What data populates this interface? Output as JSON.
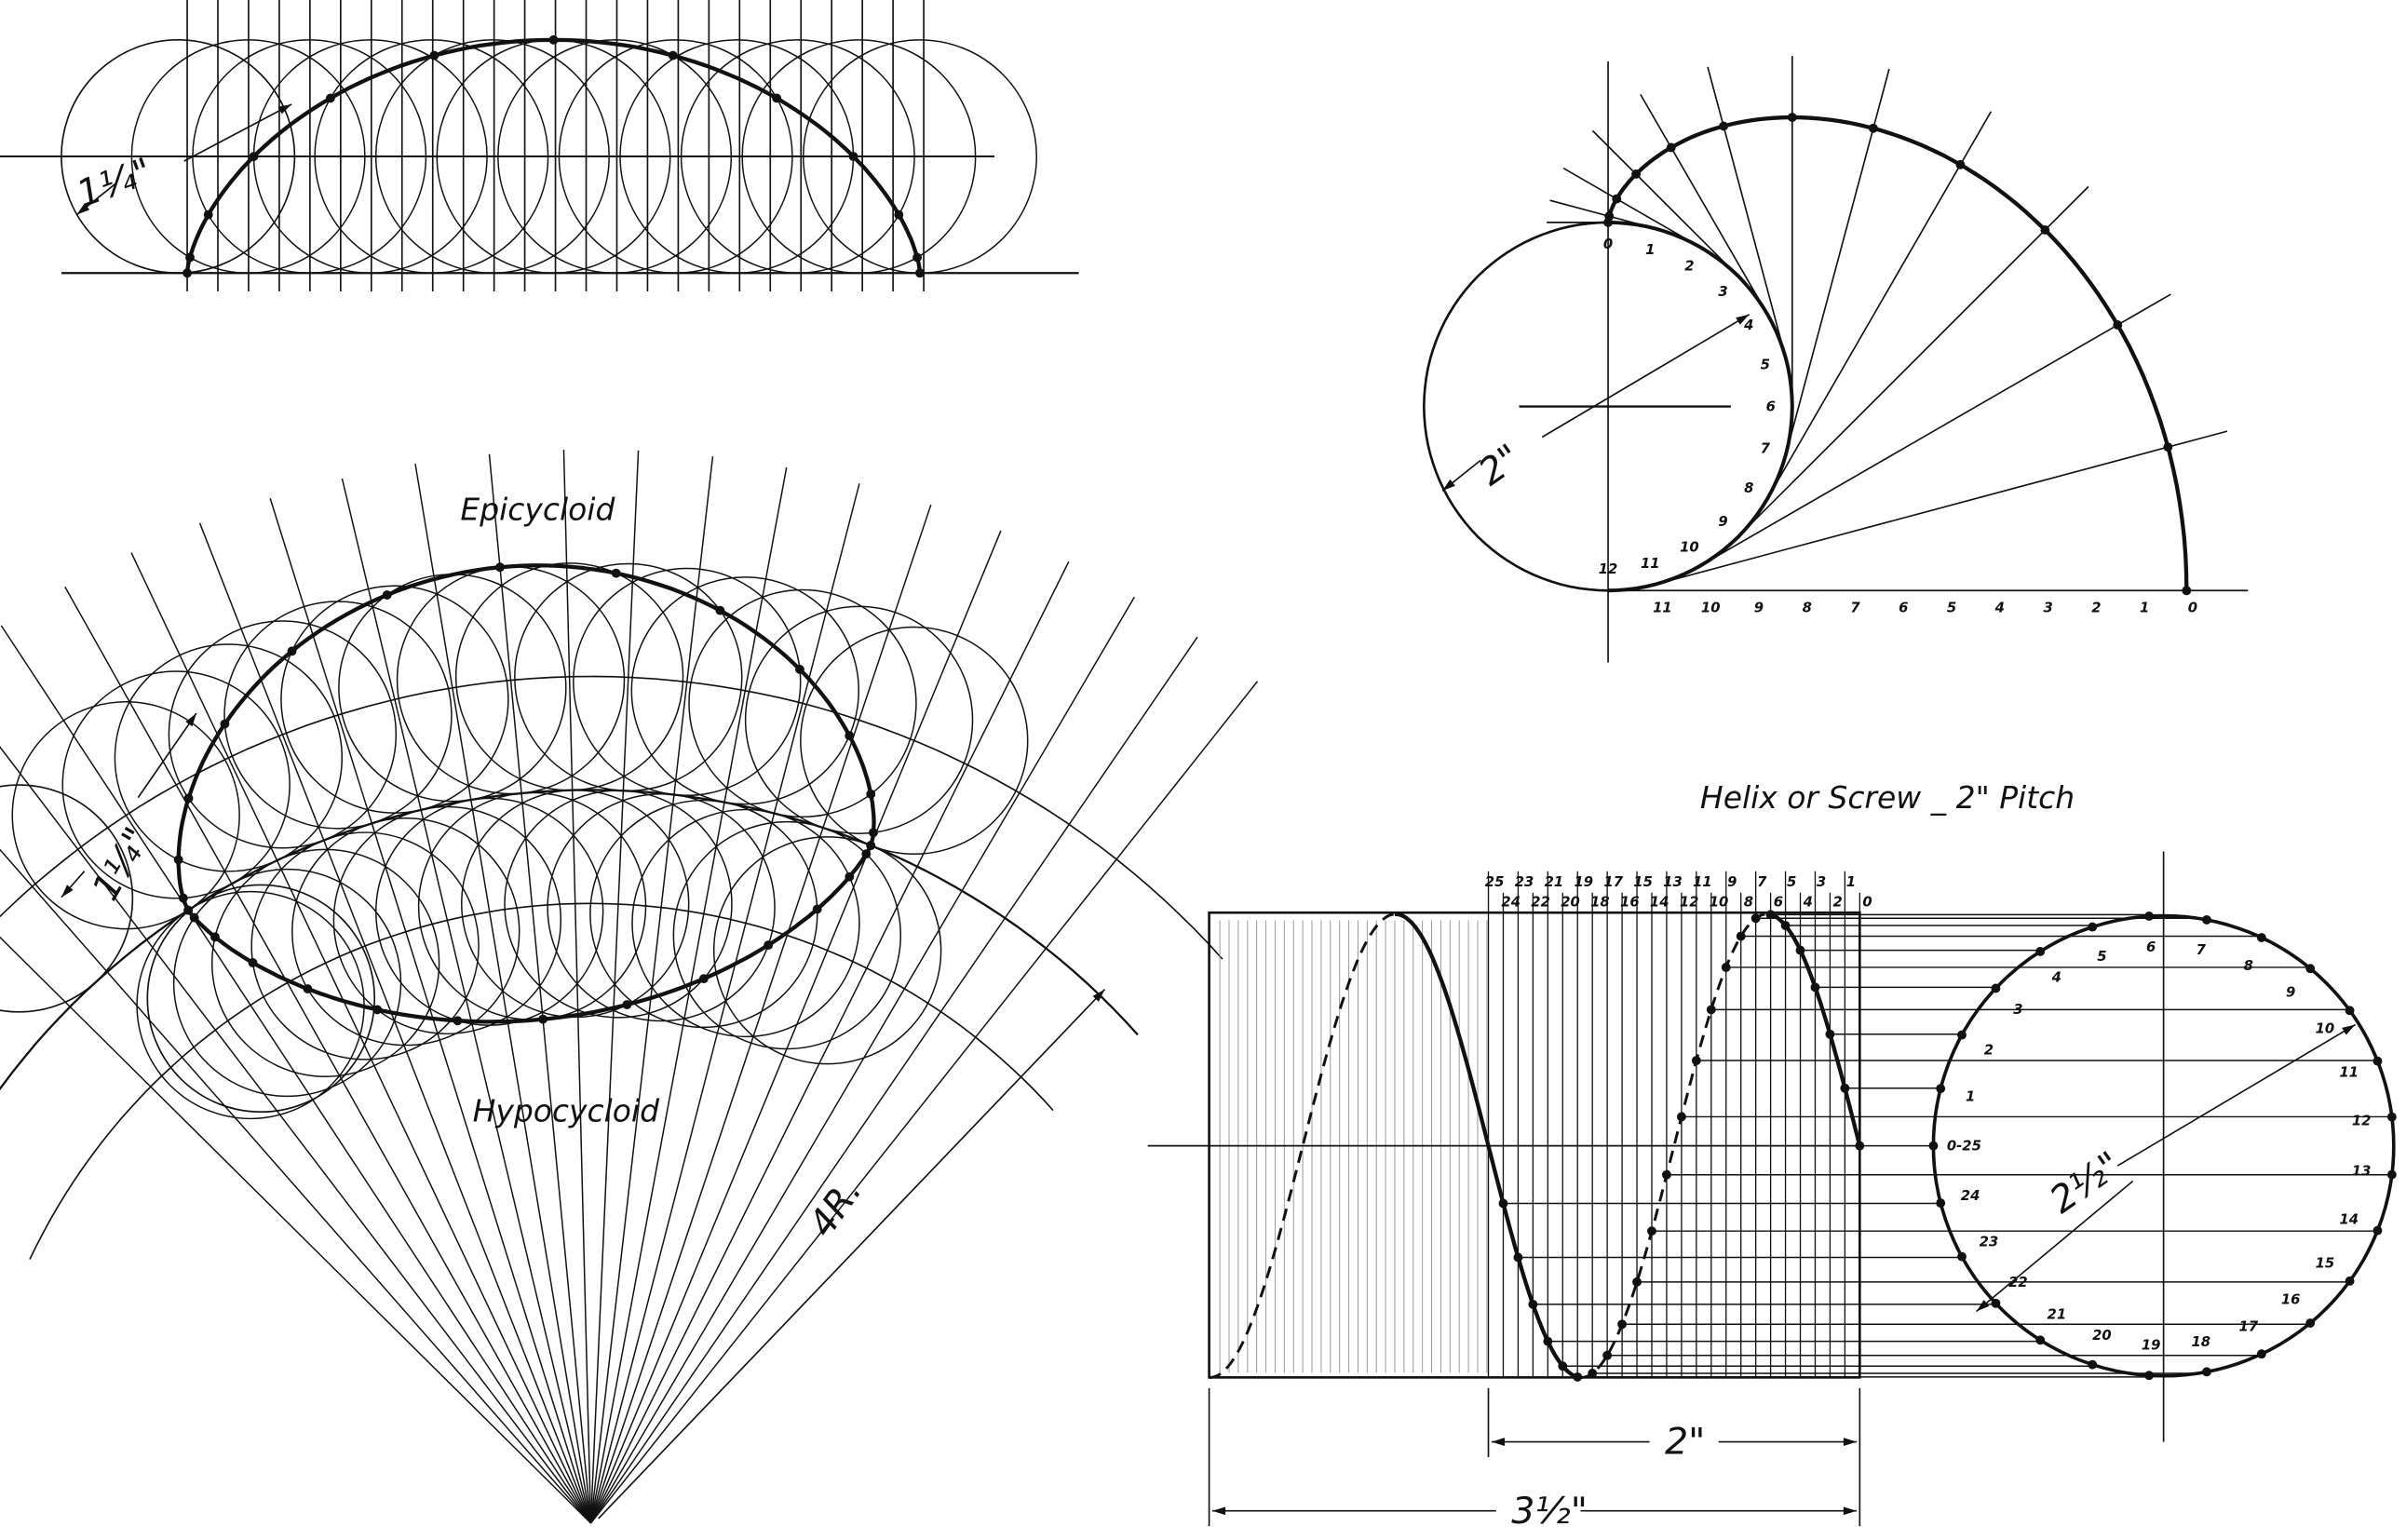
{
  "cycloid": {
    "dimension": "1¼\""
  },
  "epicycloid": {
    "title": "Epicycloid",
    "hypocycloid_title": "Hypocycloid",
    "dimension": "1¼\"",
    "radius_dimension": "4R."
  },
  "involute": {
    "dimension": "2\"",
    "circle_labels": [
      "0",
      "1",
      "2",
      "3",
      "4",
      "5",
      "6",
      "7",
      "8",
      "9",
      "10",
      "11",
      "12"
    ],
    "tangent_labels": [
      "11",
      "10",
      "9",
      "8",
      "7",
      "6",
      "5",
      "4",
      "3",
      "2",
      "1",
      "0"
    ]
  },
  "helix": {
    "title": "Helix or Screw _ 2\" Pitch",
    "pitch_dimension": "2\"",
    "length_dimension": "3½\"",
    "diameter_dimension": "2½\"",
    "top_labels_odd": [
      "25",
      "23",
      "21",
      "19",
      "17",
      "15",
      "13",
      "11",
      "9",
      "7",
      "5",
      "3",
      "1"
    ],
    "top_labels_even": [
      "24",
      "22",
      "20",
      "18",
      "16",
      "14",
      "12",
      "10",
      "8",
      "6",
      "4",
      "2",
      "0"
    ],
    "circle_labels": [
      "0-25",
      "1",
      "2",
      "3",
      "4",
      "5",
      "6",
      "7",
      "8",
      "9",
      "10",
      "11",
      "12",
      "13",
      "14",
      "15",
      "16",
      "17",
      "18",
      "19",
      "20",
      "21",
      "22",
      "23",
      "24"
    ]
  },
  "colors": {
    "ink": "#111111",
    "faint": "#999999",
    "background": "#ffffff"
  }
}
